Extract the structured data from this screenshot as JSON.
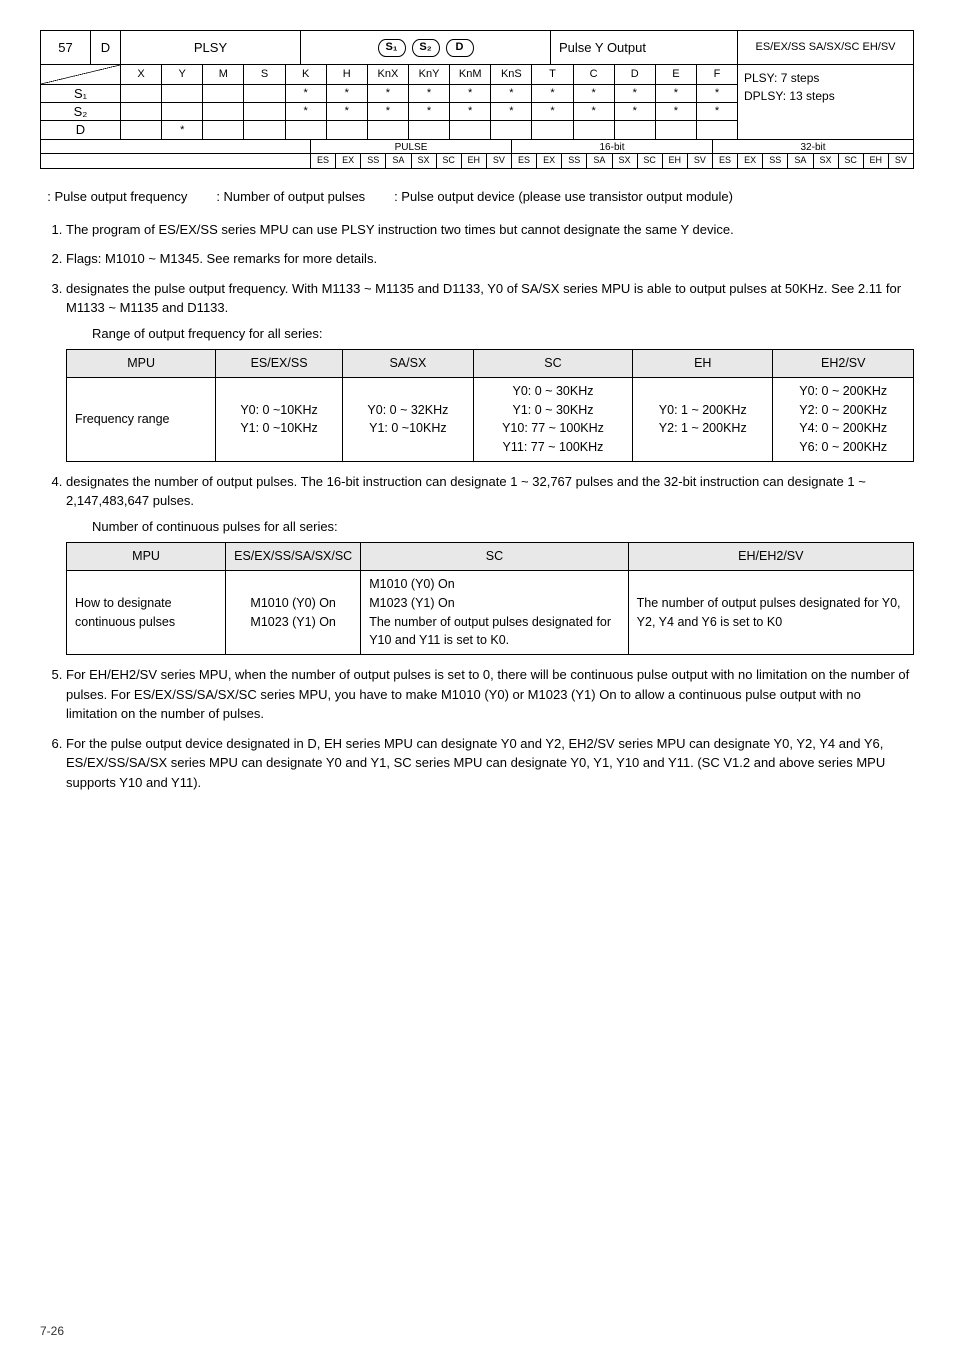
{
  "instr": {
    "api_label": "",
    "api_num": "57",
    "d_flag": "D",
    "mnemonic": "PLSY",
    "op_ovals": [
      "S₁",
      "S₂",
      "D"
    ],
    "function": "Pulse Y Output",
    "prog_support": "ES/EX/SS SA/SX/SC EH/SV"
  },
  "applic": {
    "left_rows": [
      "S₁",
      "S₂",
      "D"
    ],
    "headers": [
      "X",
      "Y",
      "M",
      "S",
      "K",
      "H",
      "KnX",
      "KnY",
      "KnM",
      "KnS",
      "T",
      "C",
      "D",
      "E",
      "F"
    ],
    "rows": [
      [
        "",
        "",
        "",
        "",
        "*",
        "*",
        "*",
        "*",
        "*",
        "*",
        "*",
        "*",
        "*",
        "*",
        "*"
      ],
      [
        "",
        "",
        "",
        "",
        "*",
        "*",
        "*",
        "*",
        "*",
        "*",
        "*",
        "*",
        "*",
        "*",
        "*"
      ],
      [
        "",
        "*",
        "",
        "",
        "",
        "",
        "",
        "",
        "",
        "",
        "",
        "",
        "",
        "",
        ""
      ]
    ],
    "steps": [
      "PLSY: 7 steps",
      "DPLSY: 13 steps"
    ]
  },
  "p1632": {
    "labels": [
      "PULSE",
      "16-bit",
      "32-bit"
    ],
    "codes": [
      "ES",
      "EX",
      "SS",
      "SA",
      "SX",
      "SC",
      "EH",
      "SV",
      "ES",
      "EX",
      "SS",
      "SA",
      "SX",
      "SC",
      "EH",
      "SV",
      "ES",
      "EX",
      "SS",
      "SA",
      "SX",
      "SC",
      "EH",
      "SV"
    ]
  },
  "body": {
    "operand_desc": "  : Pulse output frequency        : Number of output pulses        : Pulse output device (please use transistor output module)",
    "items": [
      "The program of ES/EX/SS series MPU can use PLSY instruction two times but cannot designate the same Y device.",
      "Flags: M1010 ~ M1345. See remarks for more details.",
      " designates the pulse output frequency. With M1133 ~ M1135 and D1133, Y0 of SA/SX series MPU is able to output pulses at 50KHz. See 2.11 for M1133 ~ M1135 and D1133.",
      " designates the number of output pulses. The 16-bit instruction can designate 1 ~ 32,767 pulses and the 32-bit instruction can designate 1 ~ 2,147,483,647 pulses.",
      "For EH/EH2/SV series MPU, when the number of output pulses is set to 0, there will be continuous pulse output with no limitation on the number of pulses. For ES/EX/SS/SA/SX/SC series MPU, you have to make M1010 (Y0) or M1023 (Y1) On to allow a continuous pulse output with no limitation on the number of pulses.",
      "For the pulse output device designated in D, EH series MPU can designate Y0 and Y2, EH2/SV series MPU can designate Y0, Y2, Y4 and Y6, ES/EX/SS/SA/SX series MPU can designate Y0 and Y1, SC series MPU can designate Y0, Y1, Y10 and Y11. (SC V1.2 and above series MPU supports Y10 and Y11)."
    ],
    "range_caption": "Range of output frequency for all series:",
    "pulses_caption": "Number of continuous pulses for all series:"
  },
  "freq_table": {
    "headers": [
      "MPU",
      "ES/EX/SS",
      "SA/SX",
      "SC",
      "EH",
      "EH2/SV"
    ],
    "row_label": "Frequency range",
    "cells": {
      "esexss": "Y0: 0 ~10KHz\nY1: 0 ~10KHz",
      "sasx": "Y0: 0 ~ 32KHz\nY1: 0 ~10KHz",
      "sc": "Y0: 0 ~ 30KHz\nY1: 0 ~ 30KHz\nY10: 77 ~ 100KHz\nY11: 77 ~ 100KHz",
      "eh": "Y0: 1 ~ 200KHz\nY2: 1 ~ 200KHz",
      "eh2sv": "Y0: 0 ~ 200KHz\nY2: 0 ~ 200KHz\nY4: 0 ~ 200KHz\nY6: 0 ~ 200KHz"
    }
  },
  "pulse_table": {
    "headers": [
      "MPU",
      "ES/EX/SS/SA/SX/SC",
      "SC",
      "EH/EH2/SV"
    ],
    "row_label": "How to designate continuous pulses",
    "cells": {
      "es": "M1010 (Y0) On\nM1023 (Y1) On",
      "sc": "M1010 (Y0) On\nM1023 (Y1) On\nThe number of output pulses designated for Y10 and Y11 is set to K0.",
      "eh": "The number of output pulses designated for Y0, Y2, Y4 and Y6 is set to K0"
    }
  },
  "footer": "7-26"
}
